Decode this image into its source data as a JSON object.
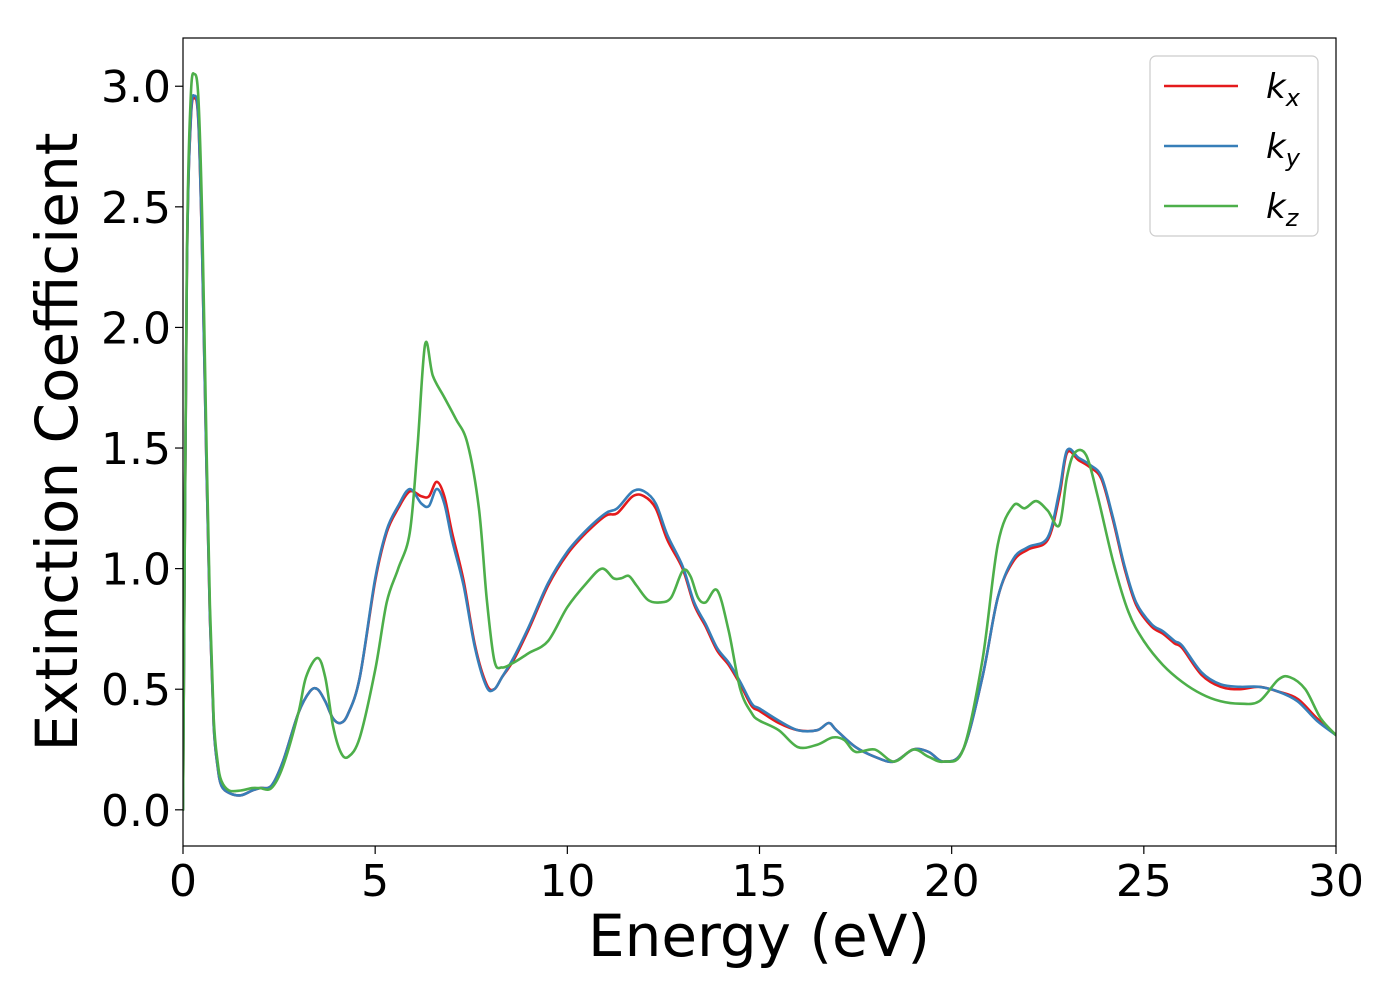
{
  "chart_data": {
    "type": "line",
    "title": "",
    "xlabel": "Energy (eV)",
    "ylabel": "Extinction Coefficient",
    "xlim": [
      0,
      30
    ],
    "ylim": [
      -0.15,
      3.2
    ],
    "xticks": [
      0,
      5,
      10,
      15,
      20,
      25,
      30
    ],
    "xtick_labels": [
      "0",
      "5",
      "10",
      "15",
      "20",
      "25",
      "30"
    ],
    "yticks": [
      0.0,
      0.5,
      1.0,
      1.5,
      2.0,
      2.5,
      3.0
    ],
    "ytick_labels": [
      "0.0",
      "0.5",
      "1.0",
      "1.5",
      "2.0",
      "2.5",
      "3.0"
    ],
    "grid": false,
    "legend_position": "top-right",
    "series": [
      {
        "name": "kx",
        "label_main": "k",
        "label_sub": "x",
        "color": "#e41a1c",
        "x": [
          0.0,
          0.1,
          0.2,
          0.3,
          0.4,
          0.5,
          0.6,
          0.7,
          0.8,
          0.9,
          1.0,
          1.2,
          1.5,
          1.8,
          2.0,
          2.3,
          2.6,
          3.0,
          3.3,
          3.5,
          3.7,
          3.9,
          4.1,
          4.3,
          4.6,
          5.0,
          5.3,
          5.6,
          5.9,
          6.2,
          6.4,
          6.6,
          6.8,
          7.0,
          7.3,
          7.6,
          7.9,
          8.1,
          8.3,
          8.6,
          9.0,
          9.5,
          10.0,
          10.5,
          11.0,
          11.3,
          11.7,
          12.0,
          12.3,
          12.6,
          13.0,
          13.3,
          13.6,
          13.9,
          14.2,
          14.5,
          14.8,
          15.0,
          15.5,
          16.0,
          16.5,
          16.8,
          17.0,
          17.5,
          18.0,
          18.5,
          19.0,
          19.4,
          19.8,
          20.3,
          20.8,
          21.2,
          21.6,
          22.0,
          22.5,
          22.8,
          23.0,
          23.3,
          23.6,
          23.9,
          24.2,
          24.5,
          24.8,
          25.2,
          25.5,
          25.8,
          26.0,
          26.5,
          27.0,
          27.5,
          28.0,
          28.5,
          29.0,
          29.5,
          30.0
        ],
        "y": [
          0.0,
          2.2,
          2.85,
          2.95,
          2.85,
          2.3,
          1.5,
          0.8,
          0.35,
          0.18,
          0.1,
          0.07,
          0.06,
          0.08,
          0.09,
          0.1,
          0.2,
          0.4,
          0.49,
          0.5,
          0.45,
          0.38,
          0.36,
          0.4,
          0.55,
          0.95,
          1.15,
          1.25,
          1.32,
          1.3,
          1.3,
          1.36,
          1.3,
          1.15,
          0.95,
          0.68,
          0.52,
          0.5,
          0.55,
          0.62,
          0.75,
          0.93,
          1.06,
          1.15,
          1.22,
          1.23,
          1.3,
          1.3,
          1.25,
          1.12,
          1.0,
          0.85,
          0.76,
          0.66,
          0.6,
          0.52,
          0.43,
          0.41,
          0.36,
          0.33,
          0.33,
          0.36,
          0.33,
          0.26,
          0.22,
          0.2,
          0.25,
          0.24,
          0.2,
          0.25,
          0.55,
          0.88,
          1.03,
          1.08,
          1.12,
          1.3,
          1.48,
          1.45,
          1.42,
          1.37,
          1.2,
          1.0,
          0.85,
          0.76,
          0.73,
          0.69,
          0.67,
          0.56,
          0.51,
          0.5,
          0.51,
          0.49,
          0.46,
          0.38,
          0.31
        ]
      },
      {
        "name": "ky",
        "label_main": "k",
        "label_sub": "y",
        "color": "#377eb8",
        "x": [
          0.0,
          0.1,
          0.2,
          0.3,
          0.4,
          0.5,
          0.6,
          0.7,
          0.8,
          0.9,
          1.0,
          1.2,
          1.5,
          1.8,
          2.0,
          2.3,
          2.6,
          3.0,
          3.3,
          3.5,
          3.7,
          3.9,
          4.1,
          4.3,
          4.6,
          5.0,
          5.3,
          5.6,
          5.9,
          6.2,
          6.4,
          6.6,
          6.8,
          7.0,
          7.3,
          7.6,
          7.9,
          8.1,
          8.3,
          8.6,
          9.0,
          9.5,
          10.0,
          10.5,
          11.0,
          11.3,
          11.7,
          12.0,
          12.3,
          12.6,
          13.0,
          13.3,
          13.6,
          13.9,
          14.2,
          14.5,
          14.8,
          15.0,
          15.5,
          16.0,
          16.5,
          16.8,
          17.0,
          17.5,
          18.0,
          18.5,
          19.0,
          19.4,
          19.8,
          20.3,
          20.8,
          21.2,
          21.6,
          22.0,
          22.5,
          22.8,
          23.0,
          23.3,
          23.6,
          23.9,
          24.2,
          24.5,
          24.8,
          25.2,
          25.5,
          25.8,
          26.0,
          26.5,
          27.0,
          27.5,
          28.0,
          28.5,
          29.0,
          29.5,
          30.0
        ],
        "y": [
          0.0,
          2.2,
          2.86,
          2.96,
          2.86,
          2.3,
          1.5,
          0.8,
          0.35,
          0.18,
          0.1,
          0.07,
          0.06,
          0.08,
          0.09,
          0.1,
          0.2,
          0.4,
          0.49,
          0.5,
          0.45,
          0.38,
          0.36,
          0.4,
          0.55,
          0.96,
          1.16,
          1.26,
          1.33,
          1.27,
          1.26,
          1.33,
          1.27,
          1.12,
          0.93,
          0.67,
          0.51,
          0.5,
          0.55,
          0.63,
          0.76,
          0.94,
          1.07,
          1.16,
          1.23,
          1.25,
          1.32,
          1.32,
          1.27,
          1.14,
          1.01,
          0.86,
          0.77,
          0.67,
          0.61,
          0.53,
          0.44,
          0.42,
          0.37,
          0.33,
          0.33,
          0.36,
          0.33,
          0.26,
          0.22,
          0.2,
          0.25,
          0.24,
          0.2,
          0.25,
          0.55,
          0.88,
          1.04,
          1.09,
          1.13,
          1.32,
          1.49,
          1.46,
          1.43,
          1.38,
          1.21,
          1.01,
          0.86,
          0.77,
          0.74,
          0.7,
          0.68,
          0.57,
          0.52,
          0.51,
          0.51,
          0.49,
          0.45,
          0.37,
          0.31
        ]
      },
      {
        "name": "kz",
        "label_main": "k",
        "label_sub": "z",
        "color": "#4daf4a",
        "x": [
          0.0,
          0.1,
          0.2,
          0.3,
          0.4,
          0.5,
          0.6,
          0.7,
          0.8,
          0.9,
          1.0,
          1.2,
          1.5,
          1.8,
          2.0,
          2.3,
          2.6,
          3.0,
          3.2,
          3.5,
          3.7,
          3.9,
          4.1,
          4.3,
          4.6,
          5.0,
          5.3,
          5.6,
          5.9,
          6.1,
          6.3,
          6.5,
          6.8,
          7.1,
          7.4,
          7.7,
          7.9,
          8.1,
          8.3,
          8.6,
          9.0,
          9.5,
          10.0,
          10.5,
          10.9,
          11.2,
          11.4,
          11.6,
          11.8,
          12.1,
          12.4,
          12.7,
          13.0,
          13.2,
          13.4,
          13.6,
          13.9,
          14.2,
          14.5,
          14.8,
          15.0,
          15.5,
          16.0,
          16.5,
          16.9,
          17.2,
          17.5,
          18.0,
          18.5,
          19.0,
          19.4,
          19.8,
          20.3,
          20.8,
          21.2,
          21.6,
          21.9,
          22.2,
          22.5,
          22.8,
          23.0,
          23.2,
          23.5,
          23.8,
          24.2,
          24.6,
          25.0,
          25.5,
          26.0,
          26.5,
          27.0,
          27.5,
          28.0,
          28.5,
          28.8,
          29.2,
          29.6,
          30.0
        ],
        "y": [
          0.0,
          2.25,
          2.95,
          3.05,
          2.95,
          2.45,
          1.6,
          0.85,
          0.38,
          0.2,
          0.12,
          0.08,
          0.08,
          0.09,
          0.09,
          0.09,
          0.18,
          0.4,
          0.55,
          0.63,
          0.55,
          0.35,
          0.24,
          0.22,
          0.3,
          0.58,
          0.86,
          1.0,
          1.15,
          1.5,
          1.93,
          1.8,
          1.71,
          1.62,
          1.52,
          1.25,
          0.88,
          0.62,
          0.59,
          0.61,
          0.65,
          0.7,
          0.84,
          0.94,
          1.0,
          0.96,
          0.96,
          0.97,
          0.93,
          0.87,
          0.86,
          0.88,
          0.99,
          0.97,
          0.88,
          0.86,
          0.91,
          0.74,
          0.5,
          0.4,
          0.37,
          0.33,
          0.26,
          0.27,
          0.3,
          0.29,
          0.24,
          0.25,
          0.2,
          0.25,
          0.22,
          0.2,
          0.25,
          0.62,
          1.1,
          1.26,
          1.25,
          1.28,
          1.24,
          1.18,
          1.38,
          1.48,
          1.47,
          1.3,
          1.03,
          0.82,
          0.7,
          0.6,
          0.53,
          0.48,
          0.45,
          0.44,
          0.45,
          0.54,
          0.55,
          0.5,
          0.38,
          0.31
        ]
      }
    ]
  }
}
